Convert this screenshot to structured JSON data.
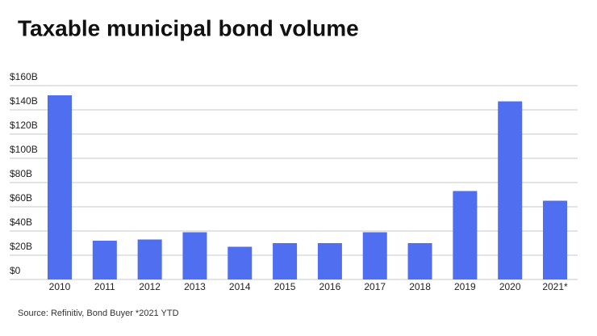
{
  "chart_data": {
    "type": "bar",
    "title": "Taxable municipal bond volume",
    "categories": [
      "2010",
      "2011",
      "2012",
      "2013",
      "2014",
      "2015",
      "2016",
      "2017",
      "2018",
      "2019",
      "2020",
      "2021*"
    ],
    "values": [
      152,
      32,
      33,
      39,
      27,
      30,
      30,
      39,
      30,
      73,
      147,
      65
    ],
    "color": "#4f6ff0",
    "ylim": [
      0,
      160
    ],
    "yticks": [
      {
        "value": 0,
        "label": "$0"
      },
      {
        "value": 20,
        "label": "$20B"
      },
      {
        "value": 40,
        "label": "$40B"
      },
      {
        "value": 60,
        "label": "$60B"
      },
      {
        "value": 80,
        "label": "$80B"
      },
      {
        "value": 100,
        "label": "$100B"
      },
      {
        "value": 120,
        "label": "$120B"
      },
      {
        "value": 140,
        "label": "$140B"
      },
      {
        "value": 160,
        "label": "$160B"
      }
    ],
    "grid": true,
    "source": "Source: Refinitiv, Bond Buyer *2021 YTD"
  }
}
